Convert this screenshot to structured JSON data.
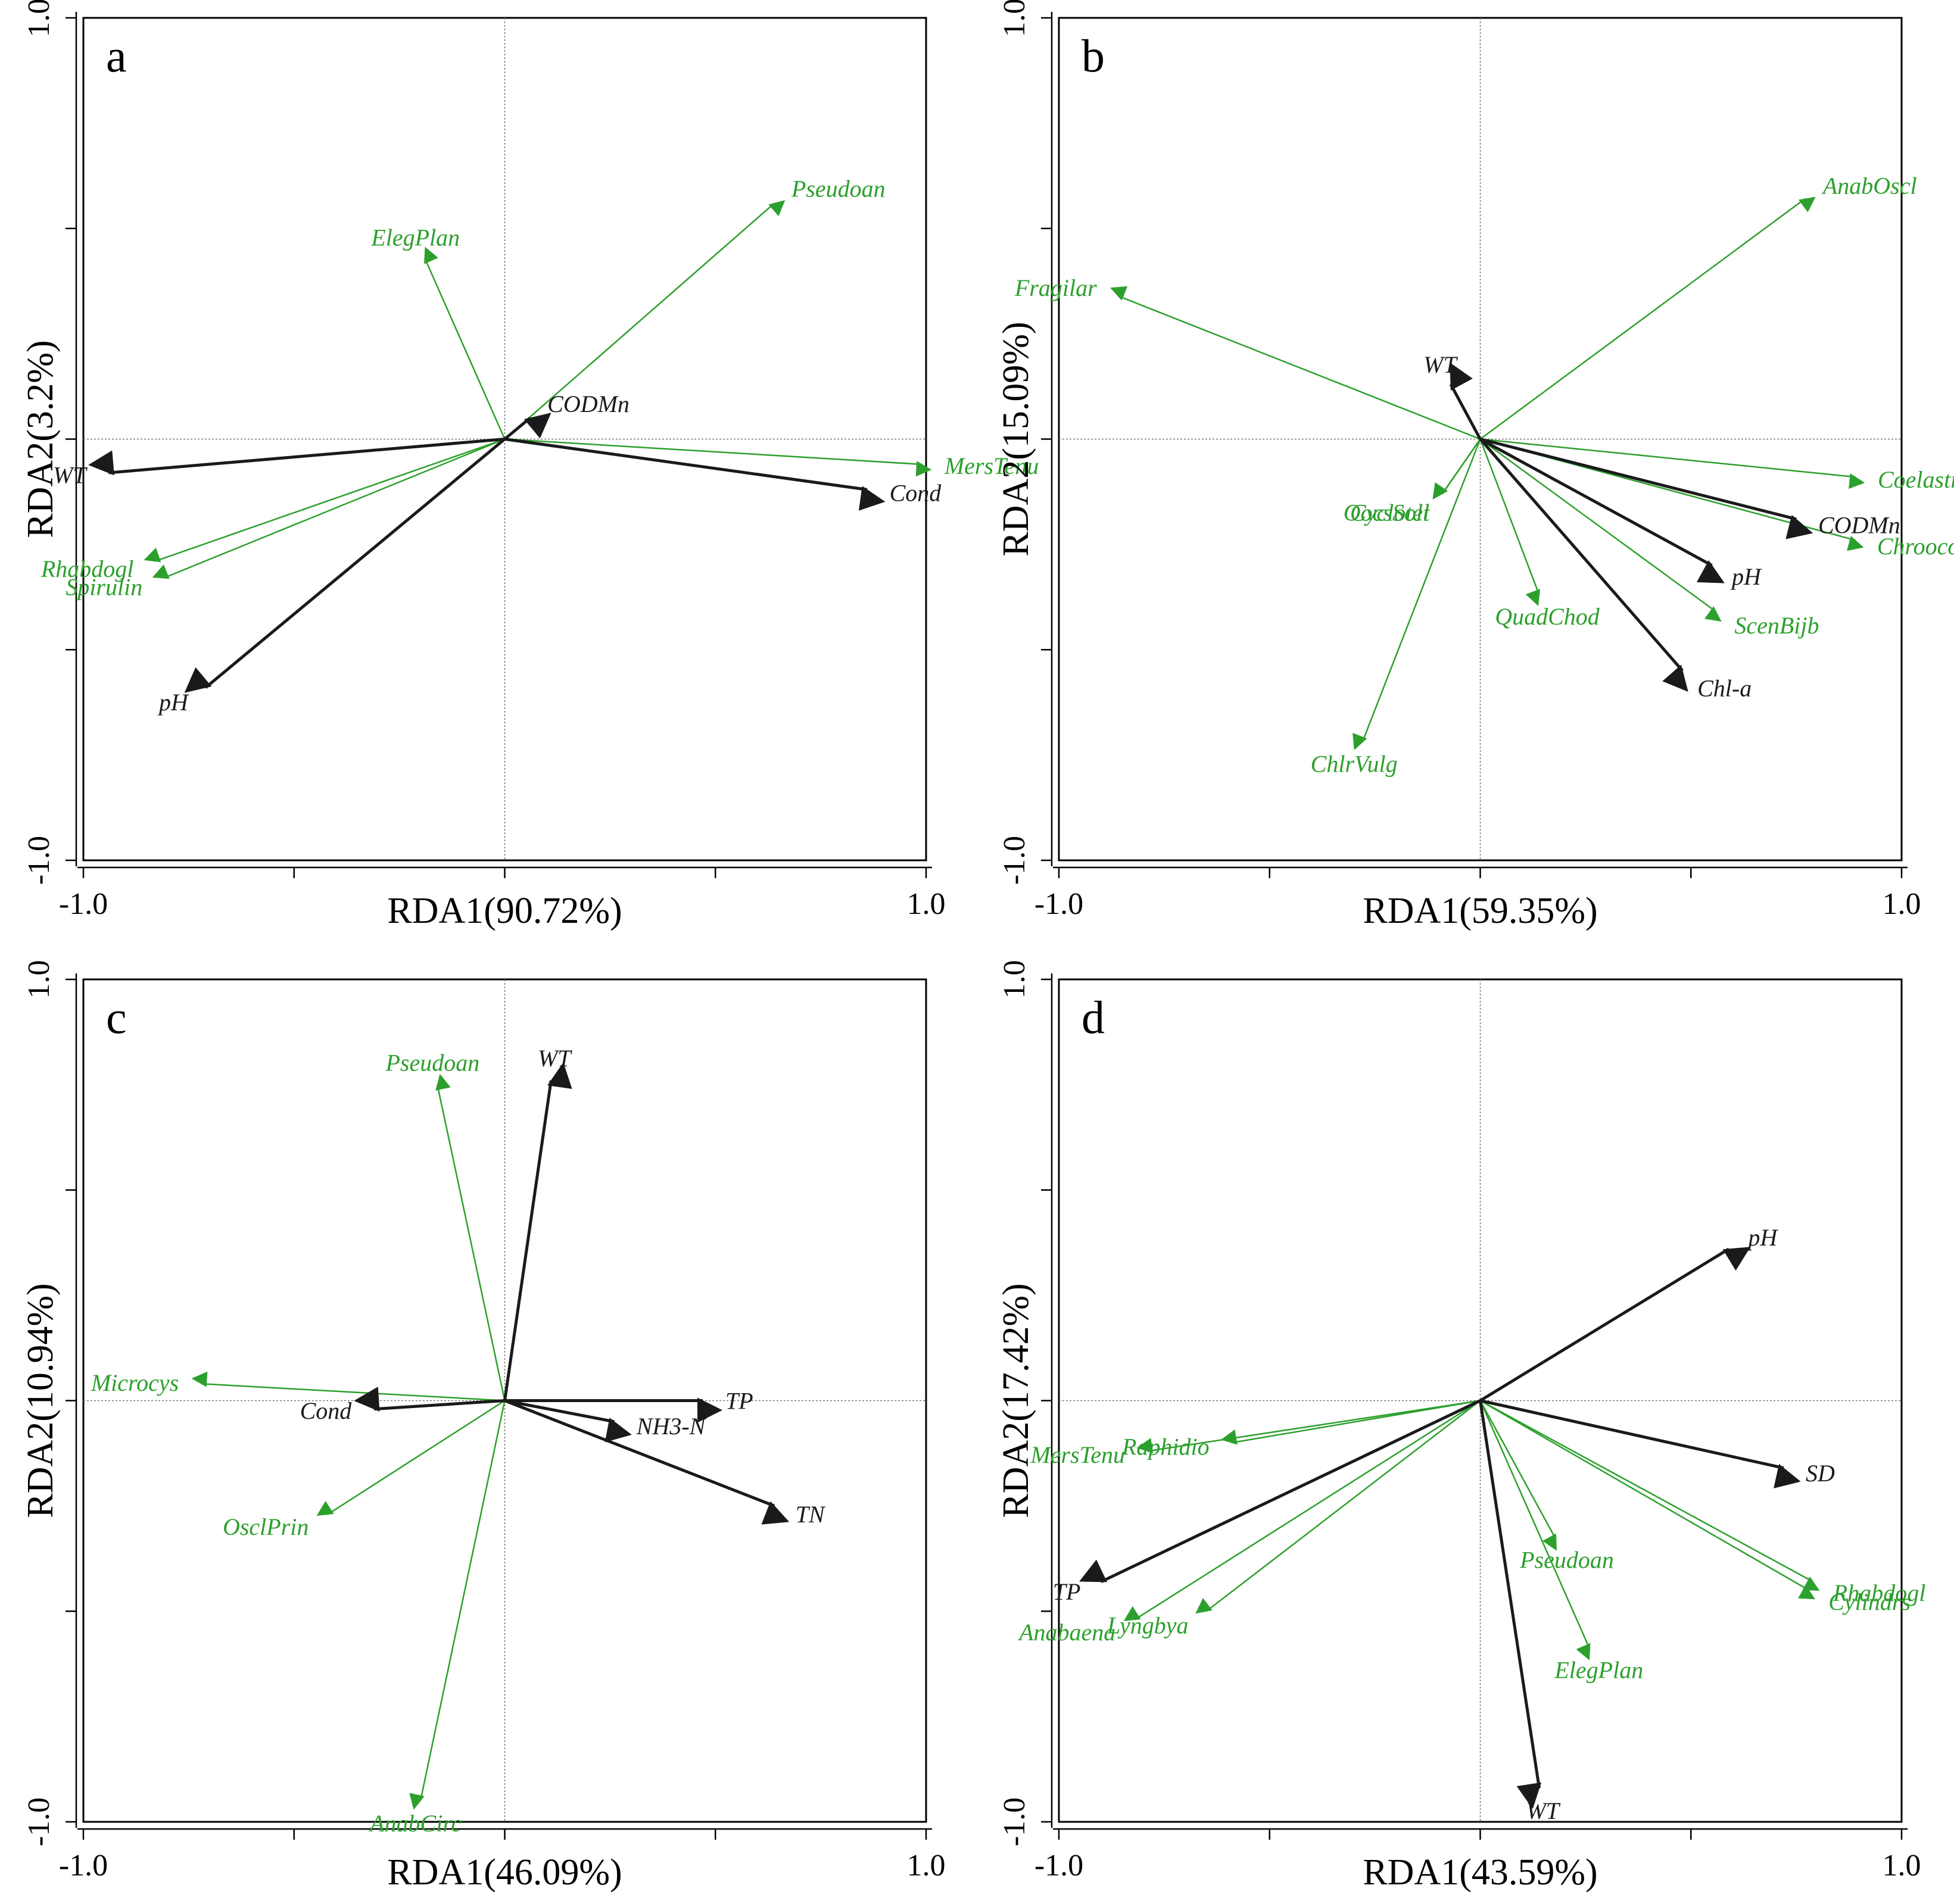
{
  "colors": {
    "environment": "#1a1a1a",
    "species": "#2ca02c"
  },
  "chart_data": [
    {
      "type": "biplot",
      "panel": "a",
      "xlabel": "RDA1(90.72%)",
      "ylabel": "RDA2(3.2%)",
      "xlim": [
        -1.0,
        1.0
      ],
      "ylim": [
        -1.0,
        1.0
      ],
      "xtick_labels": [
        "-1.0",
        "1.0"
      ],
      "ytick_labels": [
        "-1.0",
        "1.0"
      ],
      "environment": [
        {
          "name": "WT",
          "x": -0.94,
          "y": -0.08
        },
        {
          "name": "pH",
          "x": -0.71,
          "y": -0.59
        },
        {
          "name": "CODMn",
          "x": 0.06,
          "y": 0.05
        },
        {
          "name": "Cond",
          "x": 0.86,
          "y": -0.12
        }
      ],
      "species": [
        {
          "name": "Pseudoan",
          "x": 0.64,
          "y": 0.56
        },
        {
          "name": "ElegPlan",
          "x": -0.19,
          "y": 0.43
        },
        {
          "name": "MersTenu",
          "x": 0.99,
          "y": -0.06
        },
        {
          "name": "Rhabdogl",
          "x": -0.83,
          "y": -0.29
        },
        {
          "name": "Spirulin",
          "x": -0.81,
          "y": -0.33
        }
      ]
    },
    {
      "type": "biplot",
      "panel": "b",
      "xlabel": "RDA1(59.35%)",
      "ylabel": "RDA2(15.09%)",
      "xlim": [
        -1.0,
        1.0
      ],
      "ylim": [
        -1.0,
        1.0
      ],
      "xtick_labels": [
        "-1.0",
        "1.0"
      ],
      "ytick_labels": [
        "-1.0",
        "1.0"
      ],
      "environment": [
        {
          "name": "WT",
          "x": -0.07,
          "y": 0.13
        },
        {
          "name": "CODMn",
          "x": 0.75,
          "y": -0.19
        },
        {
          "name": "pH",
          "x": 0.55,
          "y": -0.3
        },
        {
          "name": "Chl-a",
          "x": 0.48,
          "y": -0.55
        }
      ],
      "species": [
        {
          "name": "AnabOscl",
          "x": 0.77,
          "y": 0.57
        },
        {
          "name": "Fragilar",
          "x": -0.86,
          "y": 0.34
        },
        {
          "name": "Coelastr",
          "x": 0.89,
          "y": -0.09
        },
        {
          "name": "Chroococ",
          "x": 0.89,
          "y": -0.24
        },
        {
          "name": "ScenBijb",
          "x": 0.56,
          "y": -0.41
        },
        {
          "name": "QuadChod",
          "x": 0.14,
          "y": -0.37
        },
        {
          "name": "Cyclotel",
          "x": -0.09,
          "y": -0.13
        },
        {
          "name": "OocsSolt",
          "x": -0.09,
          "y": -0.13
        },
        {
          "name": "ChlrVulg",
          "x": -0.28,
          "y": -0.72
        }
      ]
    },
    {
      "type": "biplot",
      "panel": "c",
      "xlabel": "RDA1(46.09%)",
      "ylabel": "RDA2(10.94%)",
      "xlim": [
        -1.0,
        1.0
      ],
      "ylim": [
        -1.0,
        1.0
      ],
      "xtick_labels": [
        "-1.0",
        "1.0"
      ],
      "ytick_labels": [
        "-1.0",
        "1.0"
      ],
      "environment": [
        {
          "name": "WT",
          "x": 0.11,
          "y": 0.76
        },
        {
          "name": "TP",
          "x": 0.47,
          "y": 0.0
        },
        {
          "name": "NH3-N",
          "x": 0.26,
          "y": -0.05
        },
        {
          "name": "TN",
          "x": 0.64,
          "y": -0.25
        },
        {
          "name": "Cond",
          "x": -0.31,
          "y": -0.02
        }
      ],
      "species": [
        {
          "name": "Pseudoan",
          "x": -0.16,
          "y": 0.75
        },
        {
          "name": "Microcys",
          "x": -0.72,
          "y": 0.04
        },
        {
          "name": "OsclPrin",
          "x": -0.42,
          "y": -0.27
        },
        {
          "name": "AnabCirc",
          "x": -0.2,
          "y": -0.95
        }
      ]
    },
    {
      "type": "biplot",
      "panel": "d",
      "xlabel": "RDA1(43.59%)",
      "ylabel": "RDA2(17.42%)",
      "xlim": [
        -1.0,
        1.0
      ],
      "ylim": [
        -1.0,
        1.0
      ],
      "xtick_labels": [
        "-1.0",
        "1.0"
      ],
      "ytick_labels": [
        "-1.0",
        "1.0"
      ],
      "environment": [
        {
          "name": "pH",
          "x": 0.59,
          "y": 0.36
        },
        {
          "name": "SD",
          "x": 0.72,
          "y": -0.16
        },
        {
          "name": "TP",
          "x": -0.9,
          "y": -0.43
        },
        {
          "name": "WT",
          "x": 0.14,
          "y": -0.92
        }
      ],
      "species": [
        {
          "name": "MersTenu",
          "x": -0.79,
          "y": -0.12
        },
        {
          "name": "Raphidio",
          "x": -0.59,
          "y": -0.1
        },
        {
          "name": "Anabaena",
          "x": -0.82,
          "y": -0.52
        },
        {
          "name": "Lyngbya",
          "x": -0.65,
          "y": -0.5
        },
        {
          "name": "Pseudoan",
          "x": 0.18,
          "y": -0.33
        },
        {
          "name": "ElegPlan",
          "x": 0.26,
          "y": -0.59
        },
        {
          "name": "Rhabdogl",
          "x": 0.79,
          "y": -0.43
        },
        {
          "name": "Cylindrs",
          "x": 0.78,
          "y": -0.45
        }
      ]
    }
  ]
}
